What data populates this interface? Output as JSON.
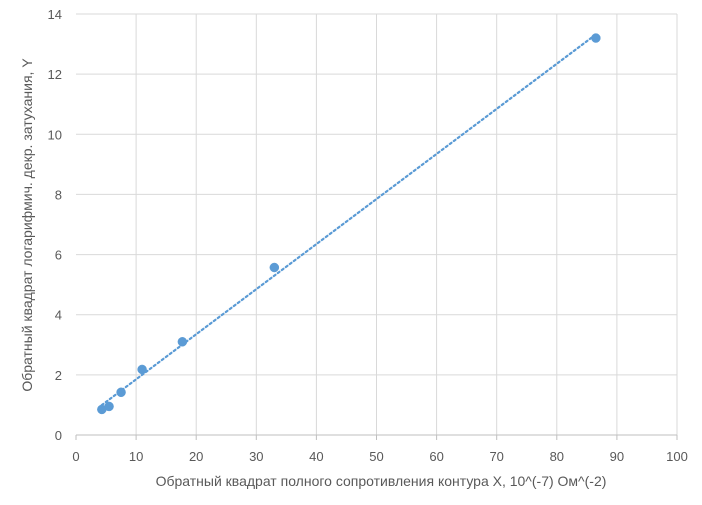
{
  "chart_data": {
    "type": "scatter",
    "xlabel": "Обратный квадрат полного сопротивления контура X, 10^(-7) Ом^(-2)",
    "ylabel": "Обратный квадрат логарифмич. декр. затухания, Y",
    "xlim": [
      0,
      100
    ],
    "ylim": [
      0,
      14
    ],
    "xticks": [
      0,
      10,
      20,
      30,
      40,
      50,
      60,
      70,
      80,
      90,
      100
    ],
    "yticks": [
      0,
      2,
      4,
      6,
      8,
      10,
      12,
      14
    ],
    "grid": true,
    "legend": "none",
    "series": [
      {
        "points": [
          {
            "x": 4.3,
            "y": 0.85
          },
          {
            "x": 5.5,
            "y": 0.95
          },
          {
            "x": 7.5,
            "y": 1.42
          },
          {
            "x": 11.0,
            "y": 2.18
          },
          {
            "x": 17.7,
            "y": 3.1
          },
          {
            "x": 33.0,
            "y": 5.57
          },
          {
            "x": 86.5,
            "y": 13.2
          }
        ],
        "color": "#5b9bd5",
        "trendline": {
          "type": "linear",
          "style": "dotted",
          "x_from": 4.3,
          "x_to": 86.5
        }
      }
    ],
    "colors": {
      "grid": "#d9d9d9",
      "axis": "#bfbfbf",
      "text": "#595959"
    }
  }
}
